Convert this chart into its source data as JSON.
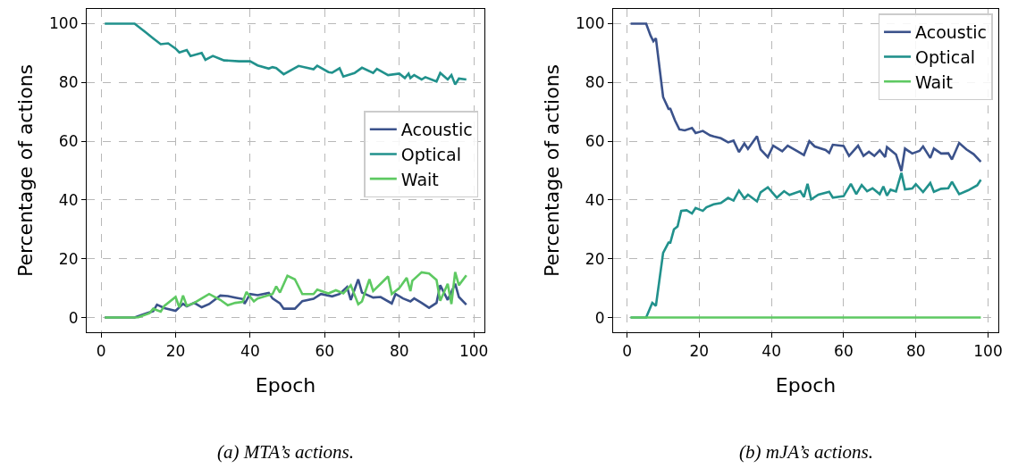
{
  "chart_data": [
    {
      "type": "line",
      "xlabel": "Epoch",
      "ylabel": "Percentage of actions",
      "xlim": [
        -3.85,
        102.85
      ],
      "ylim": [
        -5,
        105
      ],
      "xticks": [
        0,
        20,
        40,
        60,
        80,
        100
      ],
      "yticks": [
        0,
        20,
        40,
        60,
        80,
        100
      ],
      "grid": true,
      "legend": "right",
      "annotations": [
        "(a) MTA’s actions."
      ],
      "series": [
        {
          "name": "Acoustic",
          "color": "#3b528b",
          "x": [
            1,
            9,
            11,
            14,
            15,
            17,
            20,
            22,
            23,
            25,
            27,
            29,
            32,
            34,
            36,
            38,
            38.5,
            40,
            42,
            45,
            46,
            48,
            49,
            52,
            54,
            57,
            59,
            62,
            64,
            66,
            67,
            69,
            70,
            73,
            75,
            78,
            79,
            81,
            83,
            84,
            86,
            88,
            90,
            91,
            93,
            95,
            96,
            98
          ],
          "values": [
            0,
            0,
            0.9,
            2.2,
            4.4,
            3.2,
            2.3,
            4.7,
            3.8,
            5,
            3.5,
            4.6,
            7.5,
            7.3,
            6.8,
            6.3,
            4.7,
            8,
            7.6,
            8.4,
            6.5,
            4.8,
            3,
            3,
            5.6,
            6.4,
            8,
            7.2,
            8,
            10.4,
            6,
            13,
            8.5,
            6.8,
            7,
            4.8,
            8,
            6.5,
            5.5,
            6.5,
            5,
            3.3,
            5,
            11,
            6,
            11.5,
            7,
            4.4
          ]
        },
        {
          "name": "Optical",
          "color": "#21918c",
          "x": [
            1,
            9,
            12,
            14,
            16,
            18,
            20,
            21,
            23,
            24,
            27,
            28,
            30,
            32,
            33,
            37,
            40,
            42,
            45,
            46,
            47,
            49,
            53,
            57,
            58,
            61,
            62,
            64,
            65,
            68,
            70,
            73,
            74,
            77,
            80,
            81.5,
            82.5,
            83,
            84,
            86,
            87,
            90,
            91,
            93,
            94,
            95,
            96,
            98
          ],
          "values": [
            100,
            100,
            97,
            95,
            93,
            93.3,
            91.5,
            90.2,
            91,
            89,
            90,
            87.7,
            89,
            88,
            87.5,
            87.2,
            87.2,
            85.8,
            84.7,
            85.2,
            84.9,
            82.8,
            85.6,
            84.5,
            85.7,
            83.5,
            83.3,
            84.8,
            82,
            83.2,
            85,
            83.2,
            84.6,
            82.5,
            83,
            81.5,
            83,
            81.5,
            82.5,
            81,
            81.8,
            80.3,
            83.2,
            81,
            82.5,
            79.3,
            81.3,
            81
          ]
        },
        {
          "name": "Wait",
          "color": "#5ec962",
          "x": [
            1,
            8,
            10,
            13,
            14,
            16,
            17,
            20,
            21,
            22,
            23,
            25,
            27,
            29,
            32,
            34,
            36,
            38,
            39,
            41,
            42,
            46,
            47,
            48,
            50,
            52,
            54,
            57,
            58,
            61,
            63,
            65,
            67,
            69,
            70,
            72,
            73,
            75,
            77,
            78,
            80,
            82,
            83,
            83.5,
            86,
            88,
            90,
            91,
            93,
            94,
            95,
            96,
            98
          ],
          "values": [
            0,
            0,
            0.1,
            1.5,
            3,
            2,
            4,
            7,
            3.5,
            7.5,
            4,
            5,
            6.5,
            8,
            6,
            4.2,
            5,
            5.3,
            8.7,
            5.5,
            6.5,
            8,
            10.6,
            8.5,
            14.2,
            13,
            8,
            8,
            9.5,
            8.2,
            9.3,
            8.2,
            11,
            4.5,
            5.5,
            13,
            9,
            11.5,
            14,
            8,
            10,
            13.5,
            9,
            12.5,
            15.4,
            15,
            12.8,
            5.7,
            11.5,
            4.6,
            15.5,
            11,
            14.4
          ]
        }
      ]
    },
    {
      "type": "line",
      "xlabel": "Epoch",
      "ylabel": "Percentage of actions",
      "xlim": [
        -3.85,
        102.85
      ],
      "ylim": [
        -5,
        105
      ],
      "xticks": [
        0,
        20,
        40,
        60,
        80,
        100
      ],
      "yticks": [
        0,
        20,
        40,
        60,
        80,
        100
      ],
      "grid": true,
      "legend": "top right",
      "annotations": [
        "(b) mJA’s actions."
      ],
      "series": [
        {
          "name": "Acoustic",
          "color": "#3b528b",
          "x": [
            1,
            5.3,
            6.5,
            7.3,
            8,
            10,
            11.5,
            12,
            13.3,
            14.5,
            16,
            18,
            19,
            21,
            23,
            24,
            26,
            28,
            29.5,
            31,
            32.5,
            33.5,
            36,
            37,
            39,
            40.5,
            43,
            44.5,
            47,
            49,
            50.5,
            52,
            55,
            56,
            57,
            60,
            61.5,
            64,
            65.5,
            67,
            68.5,
            70,
            71.5,
            72,
            74.5,
            76,
            77,
            79,
            81,
            82,
            84,
            85,
            87,
            89,
            90,
            92,
            94,
            96,
            98
          ],
          "values": [
            100,
            100,
            96,
            94,
            95,
            75,
            71,
            71,
            67,
            64,
            63.7,
            64.5,
            62.8,
            63.5,
            62,
            61.6,
            61,
            59.6,
            60.2,
            56.3,
            59.2,
            57.4,
            61.7,
            57.2,
            54.6,
            58.5,
            56.6,
            58.5,
            56.7,
            55.3,
            60,
            58.2,
            57,
            56,
            58.8,
            58.4,
            55,
            58.5,
            55,
            56.4,
            55,
            56.9,
            54.6,
            58,
            55.5,
            49.8,
            57.5,
            55.8,
            56.7,
            58.2,
            54.3,
            57.5,
            55.8,
            55.9,
            53.8,
            59.4,
            57.2,
            55.6,
            53
          ]
        },
        {
          "name": "Optical",
          "color": "#21918c",
          "x": [
            1,
            5.3,
            7,
            8,
            10,
            11.5,
            12,
            13,
            14,
            15,
            16.5,
            18,
            19,
            21,
            22,
            24,
            26,
            28,
            29.5,
            31,
            32.5,
            33.5,
            36,
            37,
            39,
            41.5,
            43.5,
            45,
            48,
            49,
            50,
            51,
            53,
            56,
            57,
            60,
            62,
            63.5,
            65,
            66.5,
            68,
            70,
            71,
            72,
            73,
            74.5,
            76,
            77,
            79,
            80,
            82,
            84,
            85,
            87,
            89,
            90,
            92,
            94.5,
            97,
            98
          ],
          "values": [
            0,
            0,
            5,
            4,
            22,
            25.5,
            25.5,
            30,
            31,
            36.3,
            36.5,
            35.4,
            37.3,
            36.3,
            37.5,
            38.5,
            39,
            40.7,
            39.8,
            43.2,
            40.5,
            41.8,
            39.5,
            42.6,
            44.3,
            40.8,
            43,
            41.7,
            43,
            41,
            45.5,
            40.2,
            41.8,
            42.8,
            40.8,
            41.3,
            45.5,
            42,
            45.1,
            43,
            44,
            42,
            44.6,
            41.5,
            43.5,
            42.9,
            49.2,
            43.6,
            43.9,
            45.4,
            42.7,
            45.8,
            42.8,
            43.8,
            44,
            46.2,
            42,
            43.3,
            45,
            46.9
          ]
        },
        {
          "name": "Wait",
          "color": "#5ec962",
          "x": [
            1,
            98
          ],
          "values": [
            0,
            0
          ]
        }
      ]
    }
  ]
}
